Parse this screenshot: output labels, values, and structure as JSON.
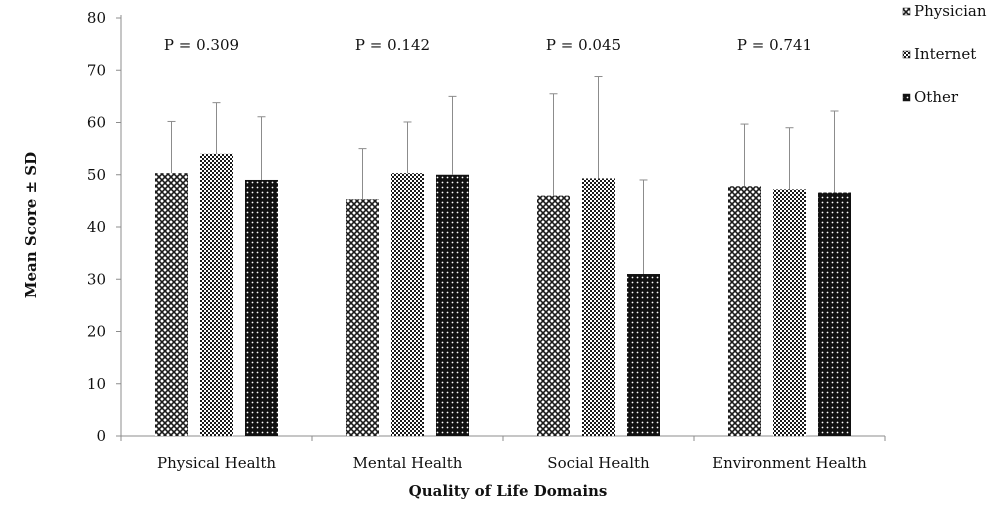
{
  "chart_data": {
    "type": "bar",
    "title": "",
    "xlabel": "Quality of Life Domains",
    "ylabel": "Mean Score ± SD",
    "ylim": [
      0,
      80
    ],
    "yticks": [
      "0",
      "10",
      "20",
      "30",
      "40",
      "50",
      "60",
      "70",
      "80"
    ],
    "categories": [
      "Physical Health",
      "Mental Health",
      "Social Health",
      "Environment Health"
    ],
    "p_values": [
      "P = 0.309",
      "P = 0.142",
      "P = 0.045",
      "P = 0.741"
    ],
    "series": [
      {
        "name": "Physician",
        "values": [
          50.3,
          45.3,
          46.0,
          47.8
        ],
        "sd": [
          9.9,
          9.7,
          19.5,
          11.9
        ],
        "pattern": "crosshatch"
      },
      {
        "name": "Internet",
        "values": [
          54.0,
          50.3,
          49.3,
          47.2
        ],
        "sd": [
          9.8,
          9.8,
          19.5,
          11.8
        ],
        "pattern": "checker"
      },
      {
        "name": "Other",
        "values": [
          49.0,
          50.0,
          31.0,
          46.6
        ],
        "sd": [
          12.1,
          15.0,
          18.0,
          15.6
        ],
        "pattern": "dots"
      }
    ],
    "grid": false,
    "legend_position": "top-right",
    "colors": {
      "bar_dark": "#1a1a1a",
      "bar_light": "#ffffff",
      "error_bar": "#8c8c8c",
      "axis": "#8c8c8c"
    }
  }
}
